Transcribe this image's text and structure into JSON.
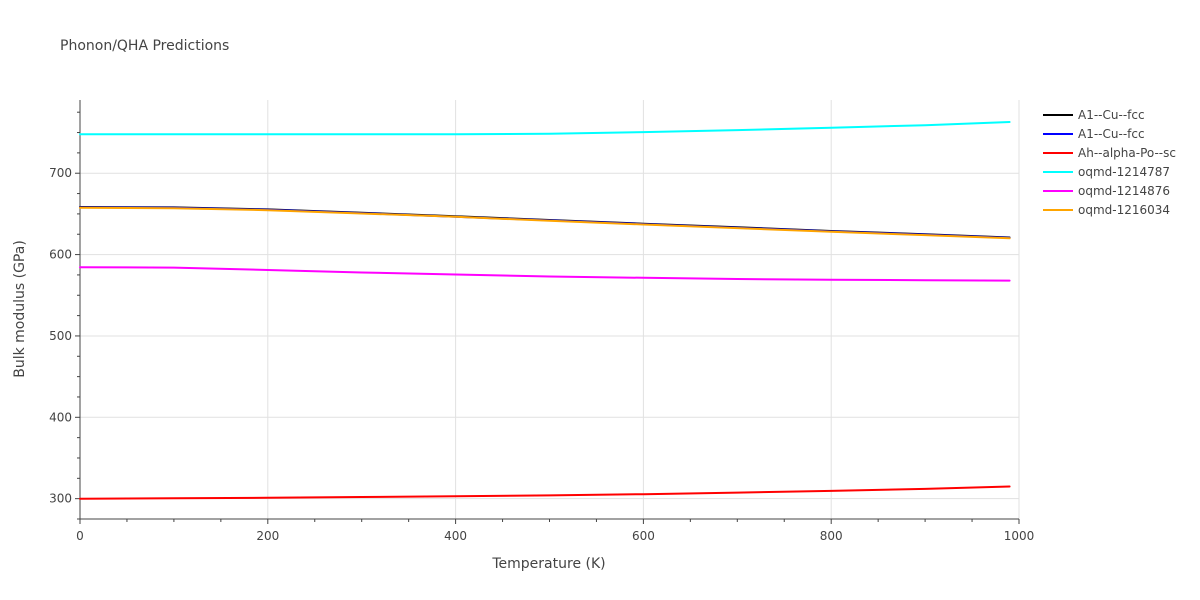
{
  "chart_data": {
    "type": "line",
    "title": "Phonon/QHA Predictions",
    "xlabel": "Temperature (K)",
    "ylabel": "Bulk modulus (GPa)",
    "xlim": [
      0,
      1000
    ],
    "ylim": [
      275,
      790
    ],
    "x_ticks": [
      0,
      200,
      400,
      600,
      800,
      1000
    ],
    "y_ticks": [
      300,
      400,
      500,
      600,
      700
    ],
    "grid": true,
    "legend_position": "right",
    "series": [
      {
        "name": "A1--Cu--fcc",
        "color": "#000000",
        "x": [
          0,
          100,
          200,
          300,
          400,
          500,
          600,
          700,
          800,
          900,
          990
        ],
        "y": [
          658.5,
          658,
          655.5,
          651.5,
          647,
          642.5,
          638,
          633.5,
          629,
          625,
          621
        ]
      },
      {
        "name": "A1--Cu--fcc",
        "color": "#0000ff",
        "x": [
          0,
          100,
          200,
          300,
          400,
          500,
          600,
          700,
          800,
          900,
          990
        ],
        "y": [
          658,
          657.5,
          655,
          651,
          646.5,
          642,
          637.5,
          633,
          628.5,
          624.5,
          620.5
        ]
      },
      {
        "name": "Ah--alpha-Po--sc",
        "color": "#ff0000",
        "x": [
          0,
          100,
          200,
          300,
          400,
          500,
          600,
          700,
          800,
          900,
          990
        ],
        "y": [
          300,
          300.5,
          301,
          302,
          303,
          304,
          305.5,
          307.5,
          309.5,
          312,
          315
        ]
      },
      {
        "name": "oqmd-1214787",
        "color": "#00ffff",
        "x": [
          0,
          100,
          200,
          300,
          400,
          500,
          600,
          700,
          800,
          900,
          990
        ],
        "y": [
          748,
          748,
          748,
          748,
          748,
          748.5,
          750.5,
          753,
          756,
          759,
          763
        ]
      },
      {
        "name": "oqmd-1214876",
        "color": "#ff00ff",
        "x": [
          0,
          100,
          200,
          300,
          400,
          500,
          600,
          700,
          800,
          900,
          990
        ],
        "y": [
          584.5,
          584,
          581,
          578,
          575.5,
          573,
          571.5,
          570,
          569,
          568.5,
          568
        ]
      },
      {
        "name": "oqmd-1216034",
        "color": "#ffa500",
        "x": [
          0,
          100,
          200,
          300,
          400,
          500,
          600,
          700,
          800,
          900,
          990
        ],
        "y": [
          657.5,
          657,
          654.5,
          650.5,
          646.5,
          641.5,
          637,
          632.5,
          628,
          624,
          620
        ]
      }
    ]
  }
}
